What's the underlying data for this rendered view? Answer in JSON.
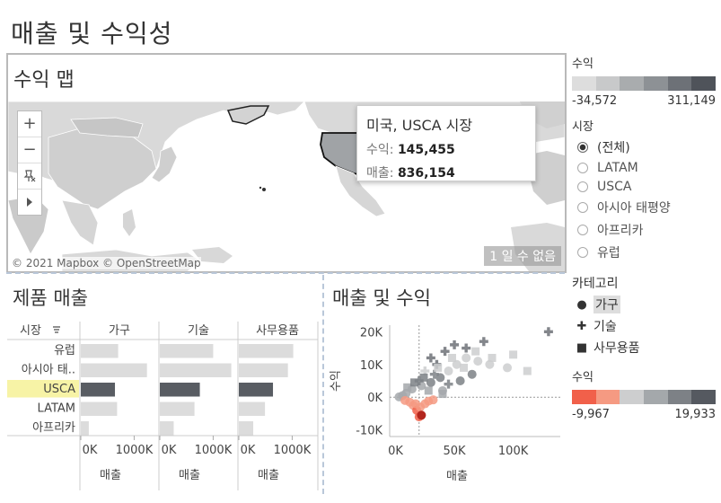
{
  "dashboard_title": "매출 및 수익성",
  "map": {
    "title": "수익 맵",
    "attribution": "© 2021 Mapbox © OpenStreetMap",
    "watermark": "1 일 수 없음",
    "zoom_in": "+",
    "zoom_out": "−",
    "tooltip": {
      "title": "미국, USCA 시장",
      "profit_label": "수익:",
      "profit_value": "145,455",
      "sales_label": "매출:",
      "sales_value": "836,154"
    }
  },
  "product_sales": {
    "title": "제품 매출",
    "row_header": "시장",
    "axis_title": "매출",
    "columns": [
      "가구",
      "기술",
      "사무용품"
    ],
    "ticks": [
      "0K",
      "1000K"
    ],
    "rows": [
      "유럽",
      "아시아 태..",
      "USCA",
      "LATAM",
      "아프리카"
    ],
    "selected_row": "USCA",
    "chart_data": {
      "type": "bar",
      "categories": [
        "유럽",
        "아시아 태..",
        "USCA",
        "LATAM",
        "아프리카"
      ],
      "series": [
        {
          "name": "가구",
          "values": [
            700000,
            1240000,
            640000,
            680000,
            150000
          ]
        },
        {
          "name": "기술",
          "values": [
            1000000,
            1340000,
            750000,
            650000,
            260000
          ]
        },
        {
          "name": "사무용품",
          "values": [
            1020000,
            920000,
            640000,
            490000,
            270000
          ]
        }
      ],
      "xlim": [
        0,
        1380000
      ],
      "xlabel": "매출",
      "ylabel": "시장"
    }
  },
  "scatter": {
    "title": "매출 및 수익",
    "chart_data": {
      "type": "scatter",
      "xlabel": "매출",
      "ylabel": "수익",
      "xlim": [
        -5000,
        140000
      ],
      "ylim": [
        -12000,
        22000
      ],
      "x_ticks": [
        "0K",
        "50K",
        "100K"
      ],
      "y_ticks": [
        "20K",
        "10K",
        "0K",
        "-10K"
      ],
      "x_tick_values": [
        0,
        50000,
        100000
      ],
      "y_tick_values": [
        20000,
        10000,
        0,
        -10000
      ],
      "points": [
        {
          "shape": "circle",
          "x": 3000,
          "y": 100
        },
        {
          "shape": "circle",
          "x": 6000,
          "y": 500
        },
        {
          "shape": "circle",
          "x": 9000,
          "y": 1200
        },
        {
          "shape": "circle",
          "x": 12000,
          "y": -1500
        },
        {
          "shape": "circle",
          "x": 15000,
          "y": -2500
        },
        {
          "shape": "circle",
          "x": 18000,
          "y": -4000
        },
        {
          "shape": "circle",
          "x": 21000,
          "y": -3000
        },
        {
          "shape": "circle",
          "x": 25000,
          "y": -2000
        },
        {
          "shape": "circle",
          "x": 28000,
          "y": -1200
        },
        {
          "shape": "circle",
          "x": 32000,
          "y": -800
        },
        {
          "shape": "circle",
          "x": 20000,
          "y": -6000
        },
        {
          "shape": "circle",
          "x": 14000,
          "y": 2500
        },
        {
          "shape": "circle",
          "x": 22000,
          "y": 3500
        },
        {
          "shape": "circle",
          "x": 30000,
          "y": 4500
        },
        {
          "shape": "circle",
          "x": 38000,
          "y": 6000
        },
        {
          "shape": "circle",
          "x": 45000,
          "y": 8000
        },
        {
          "shape": "circle",
          "x": 52000,
          "y": 10000
        },
        {
          "shape": "circle",
          "x": 60000,
          "y": 12000
        },
        {
          "shape": "circle",
          "x": 70000,
          "y": 11000
        },
        {
          "shape": "circle",
          "x": 80000,
          "y": 10000
        },
        {
          "shape": "circle",
          "x": 95000,
          "y": 9000
        },
        {
          "shape": "circle",
          "x": 40000,
          "y": 2000
        },
        {
          "shape": "circle",
          "x": 55000,
          "y": 5000
        },
        {
          "shape": "circle",
          "x": 65000,
          "y": 7000
        },
        {
          "shape": "circle",
          "x": 8000,
          "y": -1000
        },
        {
          "shape": "circle",
          "x": 17000,
          "y": -2000
        },
        {
          "shape": "cross",
          "x": 30000,
          "y": 12000
        },
        {
          "shape": "cross",
          "x": 35000,
          "y": 10000
        },
        {
          "shape": "cross",
          "x": 42000,
          "y": 14000
        },
        {
          "shape": "cross",
          "x": 50000,
          "y": 16000
        },
        {
          "shape": "cross",
          "x": 25000,
          "y": 8000
        },
        {
          "shape": "cross",
          "x": 33000,
          "y": 7000
        },
        {
          "shape": "cross",
          "x": 60000,
          "y": 15000
        },
        {
          "shape": "cross",
          "x": 75000,
          "y": 17000
        },
        {
          "shape": "cross",
          "x": 130000,
          "y": 20000
        },
        {
          "shape": "cross",
          "x": 20000,
          "y": 5000
        },
        {
          "shape": "cross",
          "x": 45000,
          "y": 4000
        },
        {
          "shape": "square",
          "x": 10000,
          "y": 3000
        },
        {
          "shape": "square",
          "x": 16000,
          "y": 4500
        },
        {
          "shape": "square",
          "x": 24000,
          "y": 6000
        },
        {
          "shape": "square",
          "x": 36000,
          "y": 9000
        },
        {
          "shape": "square",
          "x": 48000,
          "y": 12000
        },
        {
          "shape": "square",
          "x": 58000,
          "y": 9000
        },
        {
          "shape": "square",
          "x": 68000,
          "y": 14000
        },
        {
          "shape": "square",
          "x": 82000,
          "y": 12000
        },
        {
          "shape": "square",
          "x": 100000,
          "y": 13000
        },
        {
          "shape": "square",
          "x": 112000,
          "y": 8000
        },
        {
          "shape": "square",
          "x": 40000,
          "y": 1000
        },
        {
          "shape": "square",
          "x": 28000,
          "y": 2000
        }
      ],
      "reference_lines": {
        "x": 20000,
        "y": 0
      }
    }
  },
  "legend_profit_top": {
    "title": "수익",
    "min": "-34,572",
    "max": "311,149",
    "colors": [
      "#dddddd",
      "#c8c9ca",
      "#a9acae",
      "#8d9195",
      "#6d7177",
      "#4f535a"
    ]
  },
  "market_filter": {
    "title": "시장",
    "options": [
      "(전체)",
      "LATAM",
      "USCA",
      "아시아 태평양",
      "아프리카",
      "유럽"
    ],
    "selected": "(전체)"
  },
  "category_legend": {
    "title": "카테고리",
    "items": [
      {
        "label": "가구",
        "icon": "circle-icon"
      },
      {
        "label": "기술",
        "icon": "cross-icon"
      },
      {
        "label": "사무용품",
        "icon": "square-icon"
      }
    ],
    "selected": "가구"
  },
  "legend_profit_bottom": {
    "title": "수익",
    "min": "-9,967",
    "max": "19,933",
    "colors": [
      "#f1604a",
      "#f59a82",
      "#cdcecf",
      "#a4a8ab",
      "#7d8186",
      "#555960"
    ]
  },
  "colors": {
    "selected_row": "#f7f3a6",
    "usca_bar": "#595d63",
    "bar": "#dcdcdc",
    "map_land": "#d9d9d9",
    "map_us": "#a0a3a6"
  }
}
